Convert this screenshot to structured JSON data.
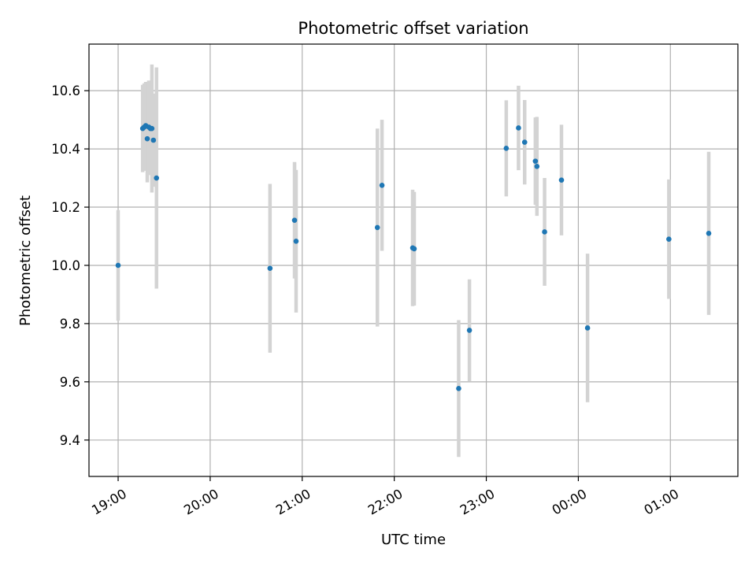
{
  "chart_data": {
    "type": "scatter",
    "title": "Photometric offset variation",
    "xlabel": "UTC time",
    "ylabel": "Photometric offset",
    "grid": true,
    "legend": "none",
    "x_ticks": [
      "19:00",
      "20:00",
      "21:00",
      "22:00",
      "23:00",
      "00:00",
      "01:00"
    ],
    "y_ticks": [
      9.4,
      9.6,
      9.8,
      10.0,
      10.2,
      10.4,
      10.6
    ],
    "xlim": [
      "18:41",
      "01:44"
    ],
    "ylim": [
      9.275,
      10.76
    ],
    "series": [
      {
        "name": "",
        "points": [
          {
            "x": "19:00",
            "y": 10.0,
            "err": 0.19
          },
          {
            "x": "19:16",
            "y": 10.47,
            "err": 0.15
          },
          {
            "x": "19:17",
            "y": 10.475,
            "err": 0.15
          },
          {
            "x": "19:18",
            "y": 10.48,
            "err": 0.15
          },
          {
            "x": "19:19",
            "y": 10.435,
            "err": 0.15
          },
          {
            "x": "19:20",
            "y": 10.475,
            "err": 0.16
          },
          {
            "x": "19:21",
            "y": 10.47,
            "err": 0.16
          },
          {
            "x": "19:22",
            "y": 10.47,
            "err": 0.22
          },
          {
            "x": "19:23",
            "y": 10.43,
            "err": 0.16
          },
          {
            "x": "19:25",
            "y": 10.3,
            "err": 0.38
          },
          {
            "x": "20:39",
            "y": 9.99,
            "err": 0.29
          },
          {
            "x": "20:55",
            "y": 10.155,
            "err": 0.2
          },
          {
            "x": "20:56",
            "y": 10.083,
            "err": 0.245
          },
          {
            "x": "21:49",
            "y": 10.13,
            "err": 0.34
          },
          {
            "x": "21:52",
            "y": 10.275,
            "err": 0.225
          },
          {
            "x": "22:12",
            "y": 10.06,
            "err": 0.2
          },
          {
            "x": "22:13",
            "y": 10.057,
            "err": 0.195
          },
          {
            "x": "22:42",
            "y": 9.577,
            "err": 0.235
          },
          {
            "x": "22:49",
            "y": 9.777,
            "err": 0.175
          },
          {
            "x": "23:13",
            "y": 10.402,
            "err": 0.165
          },
          {
            "x": "23:21",
            "y": 10.472,
            "err": 0.145
          },
          {
            "x": "23:25",
            "y": 10.423,
            "err": 0.145
          },
          {
            "x": "23:32",
            "y": 10.358,
            "err": 0.15
          },
          {
            "x": "23:33",
            "y": 10.34,
            "err": 0.17
          },
          {
            "x": "23:38",
            "y": 10.115,
            "err": 0.185
          },
          {
            "x": "23:49",
            "y": 10.293,
            "err": 0.19
          },
          {
            "x": "00:06",
            "y": 9.785,
            "err": 0.255
          },
          {
            "x": "00:59",
            "y": 10.09,
            "err": 0.205
          },
          {
            "x": "01:25",
            "y": 10.11,
            "err": 0.28
          }
        ]
      }
    ],
    "colors": {
      "point": "#1f77b4",
      "errorbar": "#d3d3d3",
      "grid": "#b0b0b0",
      "axes": "#000000"
    }
  }
}
